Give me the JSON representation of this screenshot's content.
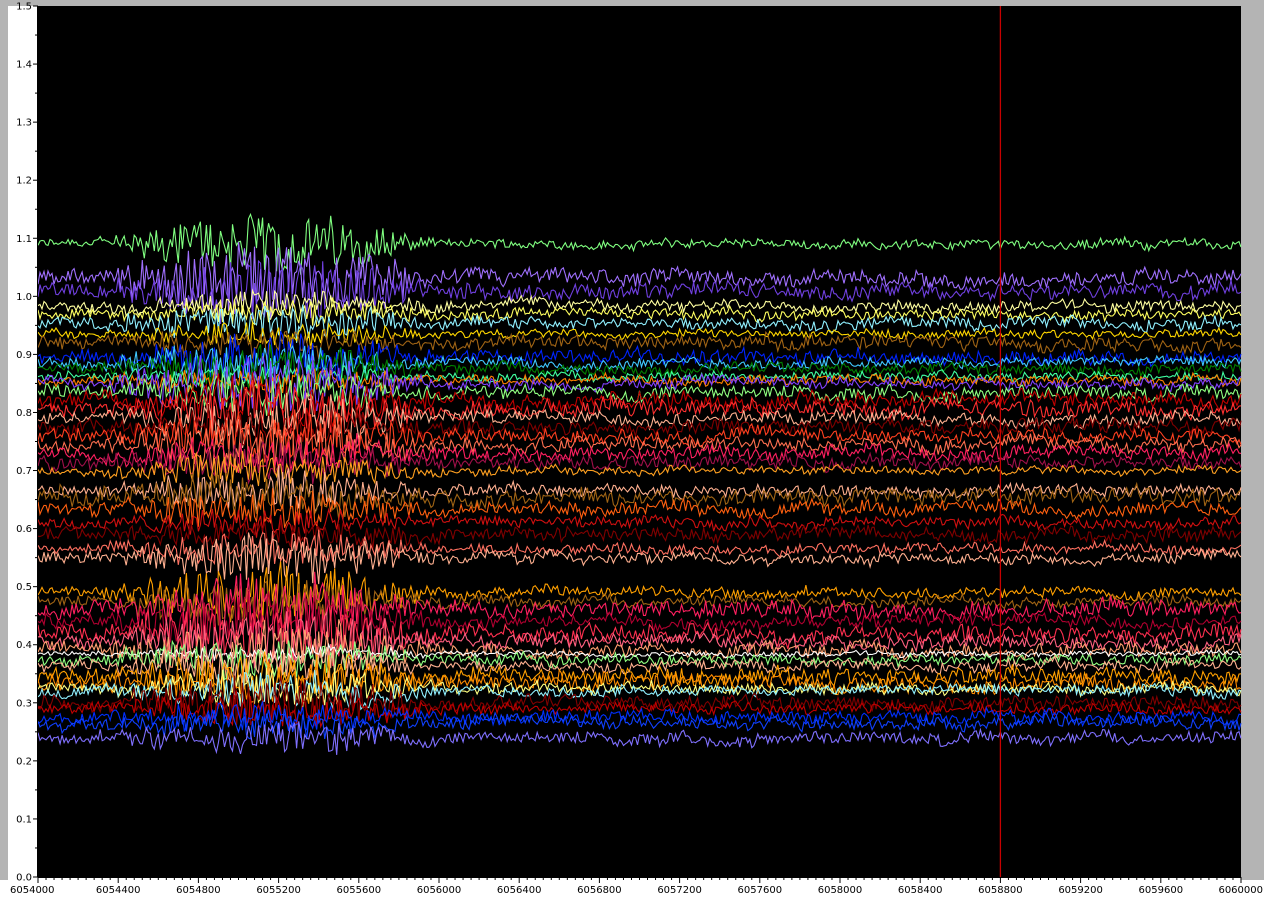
{
  "colors": {
    "plot_background": "#000000",
    "frame_gray": "#b4b4b4",
    "cursor": "#c80000"
  },
  "chart_data": {
    "type": "line",
    "title": "",
    "xlabel": "",
    "ylabel": "",
    "xlim": [
      6054000,
      6060000
    ],
    "ylim": [
      0.0,
      1.5
    ],
    "grid": false,
    "legend": "none",
    "x_ticks": [
      6054000,
      6054400,
      6054800,
      6055200,
      6055600,
      6056000,
      6056400,
      6056800,
      6057200,
      6057600,
      6058000,
      6058400,
      6058800,
      6059200,
      6059600,
      6060000
    ],
    "x_tick_labels": [
      "6054000",
      "6054400",
      "6054800",
      "6055200",
      "6055600",
      "6056000",
      "6056400",
      "6056800",
      "6057200",
      "6057600",
      "6058000",
      "6058400",
      "6058800",
      "6059200",
      "6059600",
      "6060000"
    ],
    "y_ticks": [
      0.0,
      0.1,
      0.2,
      0.3,
      0.4,
      0.5,
      0.6,
      0.7,
      0.8,
      0.9,
      1.0,
      1.1,
      1.2,
      1.3,
      1.4,
      1.5
    ],
    "y_tick_labels": [
      "0.0",
      "0.1",
      "0.2",
      "0.3",
      "0.4",
      "0.5",
      "0.6",
      "0.7",
      "0.8",
      "0.9",
      "1.0",
      "1.1",
      "1.2",
      "1.3",
      "1.4",
      "1.5"
    ],
    "cursor_x": 6058800,
    "active_region": {
      "x_start": 6054300,
      "x_end": 6056000
    },
    "series": [
      {
        "color": "#80ff80",
        "level": 1.09,
        "noise": 0.007,
        "disturbance": 0.05
      },
      {
        "color": "#a070ff",
        "level": 1.03,
        "noise": 0.012,
        "disturbance": 0.06
      },
      {
        "color": "#7040e0",
        "level": 1.01,
        "noise": 0.012,
        "disturbance": 0.05
      },
      {
        "color": "#ffffa0",
        "level": 0.985,
        "noise": 0.008,
        "disturbance": 0.02
      },
      {
        "color": "#ffff60",
        "level": 0.97,
        "noise": 0.008,
        "disturbance": 0.02
      },
      {
        "color": "#90f0ff",
        "level": 0.955,
        "noise": 0.009,
        "disturbance": 0.03
      },
      {
        "color": "#ffd700",
        "level": 0.935,
        "noise": 0.006,
        "disturbance": 0.02
      },
      {
        "color": "#a06414",
        "level": 0.92,
        "noise": 0.01,
        "disturbance": 0.02
      },
      {
        "color": "#0024ff",
        "level": 0.895,
        "noise": 0.01,
        "disturbance": 0.04
      },
      {
        "color": "#40c8ff",
        "level": 0.885,
        "noise": 0.008,
        "disturbance": 0.03
      },
      {
        "color": "#008000",
        "level": 0.875,
        "noise": 0.008,
        "disturbance": 0.04
      },
      {
        "color": "#40ffa0",
        "level": 0.862,
        "noise": 0.007,
        "disturbance": 0.02
      },
      {
        "color": "#ff8000",
        "level": 0.855,
        "noise": 0.007,
        "disturbance": 0.02
      },
      {
        "color": "#8040ff",
        "level": 0.85,
        "noise": 0.008,
        "disturbance": 0.05
      },
      {
        "color": "#90ff80",
        "level": 0.835,
        "noise": 0.01,
        "disturbance": 0.03
      },
      {
        "color": "#c00000",
        "level": 0.82,
        "noise": 0.012,
        "disturbance": 0.04
      },
      {
        "color": "#ff3030",
        "level": 0.805,
        "noise": 0.012,
        "disturbance": 0.04
      },
      {
        "color": "#ffb090",
        "level": 0.79,
        "noise": 0.01,
        "disturbance": 0.04
      },
      {
        "color": "#800000",
        "level": 0.775,
        "noise": 0.01,
        "disturbance": 0.03
      },
      {
        "color": "#ff4020",
        "level": 0.76,
        "noise": 0.01,
        "disturbance": 0.04
      },
      {
        "color": "#ff7050",
        "level": 0.745,
        "noise": 0.01,
        "disturbance": 0.04
      },
      {
        "color": "#ff2060",
        "level": 0.73,
        "noise": 0.01,
        "disturbance": 0.03
      },
      {
        "color": "#a0104a",
        "level": 0.715,
        "noise": 0.01,
        "disturbance": 0.03
      },
      {
        "color": "#ffa020",
        "level": 0.7,
        "noise": 0.006,
        "disturbance": 0.03
      },
      {
        "color": "#ffb090",
        "level": 0.665,
        "noise": 0.009,
        "disturbance": 0.03
      },
      {
        "color": "#a06414",
        "level": 0.655,
        "noise": 0.012,
        "disturbance": 0.03
      },
      {
        "color": "#ff6010",
        "level": 0.635,
        "noise": 0.01,
        "disturbance": 0.03
      },
      {
        "color": "#d01010",
        "level": 0.61,
        "noise": 0.008,
        "disturbance": 0.02
      },
      {
        "color": "#800000",
        "level": 0.59,
        "noise": 0.01,
        "disturbance": 0.02
      },
      {
        "color": "#ff7060",
        "level": 0.565,
        "noise": 0.008,
        "disturbance": 0.03
      },
      {
        "color": "#ffb090",
        "level": 0.55,
        "noise": 0.008,
        "disturbance": 0.04
      },
      {
        "color": "#ffa000",
        "level": 0.49,
        "noise": 0.008,
        "disturbance": 0.05
      },
      {
        "color": "#a06414",
        "level": 0.475,
        "noise": 0.008,
        "disturbance": 0.04
      },
      {
        "color": "#ff2060",
        "level": 0.46,
        "noise": 0.012,
        "disturbance": 0.05
      },
      {
        "color": "#b00030",
        "level": 0.44,
        "noise": 0.01,
        "disturbance": 0.05
      },
      {
        "color": "#ff3050",
        "level": 0.42,
        "noise": 0.012,
        "disturbance": 0.05
      },
      {
        "color": "#ff6080",
        "level": 0.405,
        "noise": 0.01,
        "disturbance": 0.05
      },
      {
        "color": "#ffa070",
        "level": 0.39,
        "noise": 0.01,
        "disturbance": 0.05
      },
      {
        "color": "#ffffff",
        "level": 0.385,
        "noise": 0.004,
        "disturbance": 0.01
      },
      {
        "color": "#90ff80",
        "level": 0.375,
        "noise": 0.008,
        "disturbance": 0.03
      },
      {
        "color": "#ffb090",
        "level": 0.365,
        "noise": 0.008,
        "disturbance": 0.03
      },
      {
        "color": "#ffa000",
        "level": 0.345,
        "noise": 0.012,
        "disturbance": 0.04
      },
      {
        "color": "#ff8c00",
        "level": 0.335,
        "noise": 0.012,
        "disturbance": 0.03
      },
      {
        "color": "#ffff80",
        "level": 0.325,
        "noise": 0.008,
        "disturbance": 0.03
      },
      {
        "color": "#90f0ff",
        "level": 0.32,
        "noise": 0.008,
        "disturbance": 0.03
      },
      {
        "color": "#800000",
        "level": 0.3,
        "noise": 0.01,
        "disturbance": 0.04
      },
      {
        "color": "#c00000",
        "level": 0.29,
        "noise": 0.008,
        "disturbance": 0.03
      },
      {
        "color": "#0030ff",
        "level": 0.275,
        "noise": 0.009,
        "disturbance": 0.02
      },
      {
        "color": "#1040ff",
        "level": 0.265,
        "noise": 0.009,
        "disturbance": 0.02
      },
      {
        "color": "#8070ff",
        "level": 0.24,
        "noise": 0.009,
        "disturbance": 0.025
      }
    ]
  }
}
